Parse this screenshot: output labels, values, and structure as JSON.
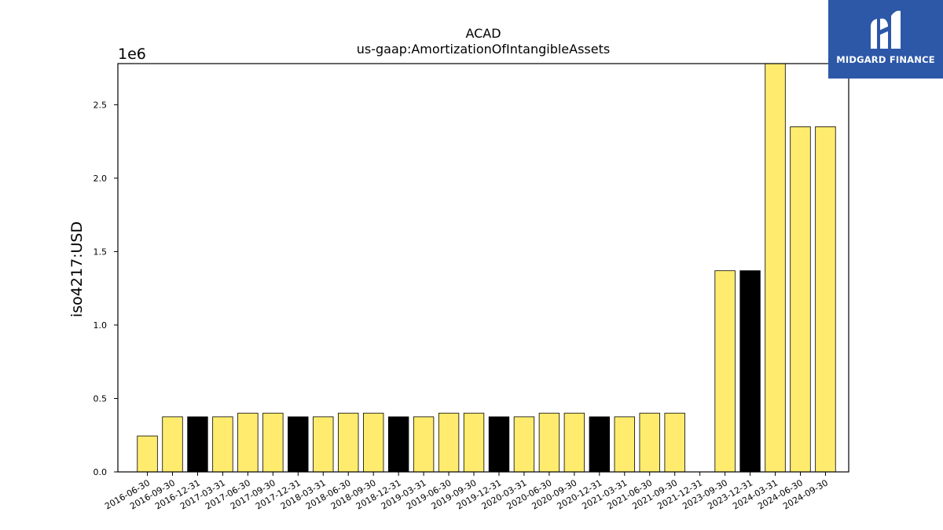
{
  "chart_data": {
    "type": "bar",
    "title": "ACAD",
    "subtitle": "us-gaap:AmortizationOfIntangibleAssets",
    "ylabel": "iso4217:USD",
    "y_offset_label": "1e6",
    "ylim": [
      0,
      2780000
    ],
    "yticks": [
      0,
      500000,
      1000000,
      1500000,
      2000000,
      2500000
    ],
    "ytick_labels": [
      "0.0",
      "0.5",
      "1.0",
      "1.5",
      "2.0",
      "2.5"
    ],
    "grid": false,
    "colors": {
      "quarter": "#ffec6e",
      "year_end": "#000000",
      "edge": "#000000"
    },
    "categories": [
      "2016-06-30",
      "2016-09-30",
      "2016-12-31",
      "2017-03-31",
      "2017-06-30",
      "2017-09-30",
      "2017-12-31",
      "2018-03-31",
      "2018-06-30",
      "2018-09-30",
      "2018-12-31",
      "2019-03-31",
      "2019-06-30",
      "2019-09-30",
      "2019-12-31",
      "2020-03-31",
      "2020-06-30",
      "2020-09-30",
      "2020-12-31",
      "2021-03-31",
      "2021-06-30",
      "2021-09-30",
      "2021-12-31",
      "2023-09-30",
      "2023-12-31",
      "2024-03-31",
      "2024-06-30",
      "2024-09-30"
    ],
    "values": [
      245000,
      375000,
      375000,
      375000,
      400000,
      400000,
      375000,
      375000,
      400000,
      400000,
      375000,
      375000,
      400000,
      400000,
      375000,
      375000,
      400000,
      400000,
      375000,
      375000,
      400000,
      400000,
      0,
      1370000,
      1370000,
      2780000,
      2350000,
      2350000
    ],
    "bar_color_keys": [
      "quarter",
      "quarter",
      "year_end",
      "quarter",
      "quarter",
      "quarter",
      "year_end",
      "quarter",
      "quarter",
      "quarter",
      "year_end",
      "quarter",
      "quarter",
      "quarter",
      "year_end",
      "quarter",
      "quarter",
      "quarter",
      "year_end",
      "quarter",
      "quarter",
      "quarter",
      "year_end",
      "quarter",
      "year_end",
      "quarter",
      "quarter",
      "quarter"
    ]
  },
  "logo": {
    "text": "MIDGARD FINANCE",
    "background": "#2d58a8",
    "icon": "midgard-m-logo-icon"
  }
}
